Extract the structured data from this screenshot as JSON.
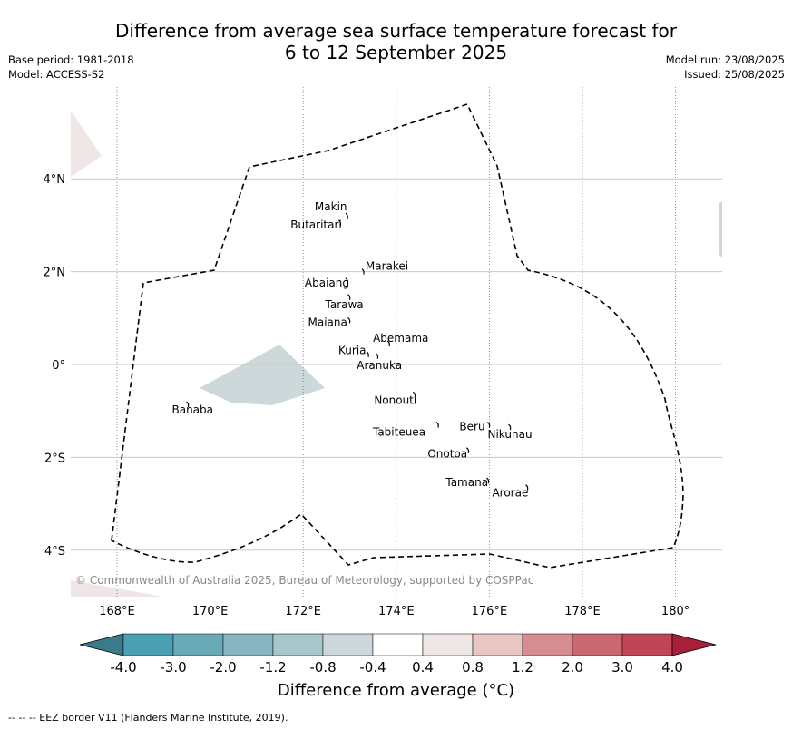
{
  "header": {
    "title_line1": "Difference from average sea surface temperature forecast for",
    "title_line2": "6 to 12 September 2025",
    "base_period": "Base period: 1981-2018",
    "model": "Model: ACCESS-S2",
    "model_run": "Model run: 23/08/2025",
    "issued": "Issued: 25/08/2025"
  },
  "map": {
    "lon_range": [
      167,
      181
    ],
    "lat_range": [
      -5,
      6
    ],
    "lon_ticks": [
      {
        "value": 168,
        "label": "168°E"
      },
      {
        "value": 170,
        "label": "170°E"
      },
      {
        "value": 172,
        "label": "172°E"
      },
      {
        "value": 174,
        "label": "174°E"
      },
      {
        "value": 176,
        "label": "176°E"
      },
      {
        "value": 178,
        "label": "178°E"
      },
      {
        "value": 180,
        "label": "180°"
      }
    ],
    "lat_ticks": [
      {
        "value": 4,
        "label": "4°N"
      },
      {
        "value": 2,
        "label": "2°N"
      },
      {
        "value": 0,
        "label": "0°"
      },
      {
        "value": -2,
        "label": "2°S"
      },
      {
        "value": -4,
        "label": "4°S"
      }
    ],
    "islands": [
      {
        "name": "Makin",
        "lon": 172.95,
        "lat": 3.2
      },
      {
        "name": "Butaritari",
        "lon": 172.8,
        "lat": 3.05
      },
      {
        "name": "Marakei",
        "lon": 173.3,
        "lat": 2.0
      },
      {
        "name": "Abaiang",
        "lon": 172.95,
        "lat": 1.8
      },
      {
        "name": "Tarawa",
        "lon": 173.0,
        "lat": 1.45
      },
      {
        "name": "Maiana",
        "lon": 173.0,
        "lat": 0.95
      },
      {
        "name": "Abemama",
        "lon": 173.85,
        "lat": 0.45
      },
      {
        "name": "Kuria",
        "lon": 173.4,
        "lat": 0.22
      },
      {
        "name": "Aranuka",
        "lon": 173.6,
        "lat": 0.18
      },
      {
        "name": "Banaba",
        "lon": 169.53,
        "lat": -0.86
      },
      {
        "name": "Nonouti",
        "lon": 174.4,
        "lat": -0.65
      },
      {
        "name": "Tabiteuea",
        "lon": 174.9,
        "lat": -1.3
      },
      {
        "name": "Beru",
        "lon": 176.0,
        "lat": -1.3
      },
      {
        "name": "Nikunau",
        "lon": 176.45,
        "lat": -1.35
      },
      {
        "name": "Onotoa",
        "lon": 175.55,
        "lat": -1.85
      },
      {
        "name": "Tamana",
        "lon": 175.98,
        "lat": -2.5
      },
      {
        "name": "Arorae",
        "lon": 176.82,
        "lat": -2.65
      }
    ],
    "copyright": "© Commonwealth of Australia 2025, Bureau of Meteorology, supported by COSPPac"
  },
  "colorbar": {
    "colors": [
      "#3a7a8a",
      "#4aa0b0",
      "#6aaab6",
      "#88b5bf",
      "#a9c6cb",
      "#ccd8da",
      "#ffffff",
      "#efe6e6",
      "#e8c6c2",
      "#d58c93",
      "#c96870",
      "#c04556",
      "#a91f3a"
    ],
    "tick_labels": [
      "-4.0",
      "-3.0",
      "-2.0",
      "-1.2",
      "-0.8",
      "-0.4",
      "0.4",
      "0.8",
      "1.2",
      "2.0",
      "3.0",
      "4.0"
    ],
    "label": "Difference from average (°C)"
  },
  "footer": "--  --  -- EEZ border V11 (Flanders Marine Institute, 2019)."
}
